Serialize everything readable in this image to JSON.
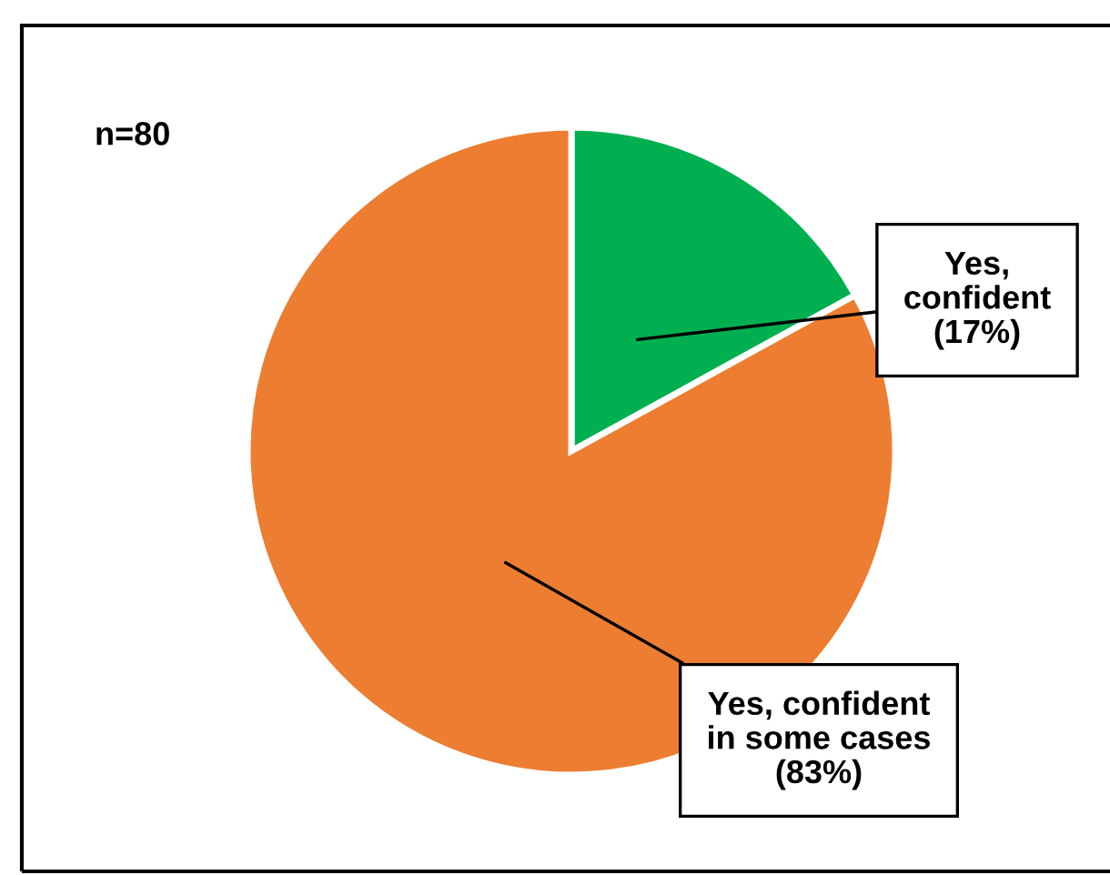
{
  "chart_data": {
    "type": "pie",
    "categories": [
      "Yes,\nconfident",
      "Yes, confident\nin some cases"
    ],
    "values": [
      17,
      83
    ],
    "colors": [
      "#00b050",
      "#ed7d31"
    ],
    "value_labels": [
      "(17%)",
      "(83%)"
    ],
    "annotations": [
      "n=80"
    ],
    "legend": false
  }
}
